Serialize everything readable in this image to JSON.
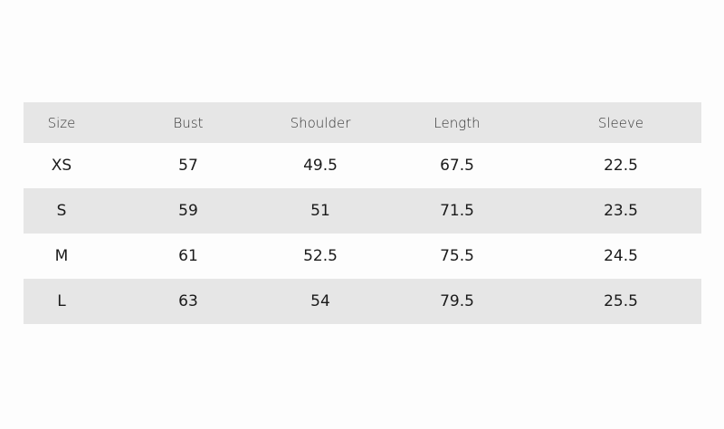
{
  "table": {
    "headers": [
      "Size",
      "Bust",
      "Shoulder",
      "Length",
      "Sleeve"
    ],
    "rows": [
      [
        "XS",
        "57",
        "49.5",
        "67.5",
        "22.5"
      ],
      [
        "S",
        "59",
        "51",
        "71.5",
        "23.5"
      ],
      [
        "M",
        "61",
        "52.5",
        "75.5",
        "24.5"
      ],
      [
        "L",
        "63",
        "54",
        "79.5",
        "25.5"
      ]
    ]
  },
  "colors": {
    "stripe": "#e6e6e6",
    "background": "#fdfdfd"
  }
}
